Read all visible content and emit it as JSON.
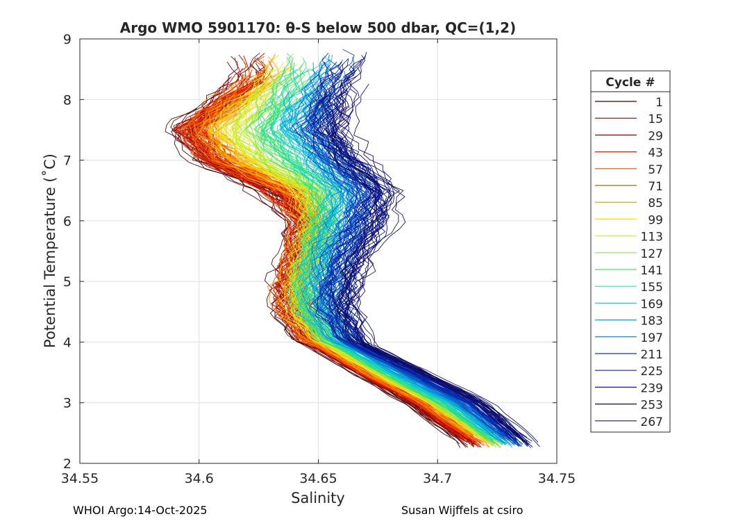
{
  "chart_data": {
    "type": "line",
    "title": "Argo WMO 5901170: θ-S below 500 dbar,  QC=(1,2)",
    "xlabel": "Salinity",
    "ylabel": "Potential Temperature (˚C)",
    "xlim": [
      34.55,
      34.75
    ],
    "ylim": [
      2,
      9
    ],
    "xticks": [
      "34.55",
      "34.6",
      "34.65",
      "34.7",
      "34.75"
    ],
    "yticks": [
      "2",
      "3",
      "4",
      "5",
      "6",
      "7",
      "8",
      "9"
    ],
    "grid": true,
    "legend": {
      "title": "Cycle #",
      "placement": "outside-right",
      "entries": [
        "1",
        "15",
        "29",
        "43",
        "57",
        "71",
        "85",
        "99",
        "113",
        "127",
        "141",
        "155",
        "169",
        "183",
        "197",
        "211",
        "225",
        "239",
        "253",
        "267"
      ],
      "colors": [
        "#3a0000",
        "#800000",
        "#a60000",
        "#cc1a00",
        "#e64d00",
        "#a86a00",
        "#c8a000",
        "#ffdd00",
        "#d4ef30",
        "#8ce34a",
        "#45e665",
        "#1ee6b0",
        "#12d2dc",
        "#0aa0dc",
        "#0a6ebe",
        "#0a3ca0",
        "#14288c",
        "#1414aa",
        "#0a0a46",
        "#191970"
      ]
    },
    "series_summary": "Theta-S profiles for cycles 1 to 267, one line per cycle, colored by cycle number",
    "mean_profile_by_cycle_group": [
      {
        "name": "cycles 1-43",
        "theta": [
          2.3,
          3.0,
          3.5,
          4.0,
          4.5,
          5.0,
          5.5,
          6.0,
          6.5,
          7.0,
          7.5,
          8.0,
          8.3
        ],
        "salinity": [
          34.712,
          34.688,
          34.666,
          34.645,
          34.637,
          34.637,
          34.64,
          34.642,
          34.628,
          34.602,
          34.592,
          34.608,
          34.618
        ]
      },
      {
        "name": "cycles 57-99",
        "theta": [
          2.3,
          3.0,
          3.5,
          4.0,
          4.5,
          5.0,
          5.5,
          6.0,
          6.5,
          7.0,
          7.5,
          8.0,
          8.5
        ],
        "salinity": [
          34.722,
          34.696,
          34.672,
          34.65,
          34.641,
          34.64,
          34.644,
          34.648,
          34.64,
          34.612,
          34.6,
          34.614,
          34.628
        ]
      },
      {
        "name": "cycles 113-169",
        "theta": [
          2.3,
          3.0,
          3.5,
          4.0,
          4.5,
          5.0,
          5.5,
          6.0,
          6.5,
          7.0,
          7.5,
          8.0,
          8.6
        ],
        "salinity": [
          34.73,
          34.706,
          34.682,
          34.66,
          34.65,
          34.65,
          34.652,
          34.656,
          34.66,
          34.65,
          34.64,
          34.645,
          34.65
        ]
      },
      {
        "name": "cycles 183-267",
        "theta": [
          2.3,
          3.0,
          3.5,
          4.0,
          4.5,
          5.0,
          5.5,
          6.0,
          6.5,
          7.0,
          7.5,
          8.0,
          8.7
        ],
        "salinity": [
          34.74,
          34.72,
          34.695,
          34.668,
          34.662,
          34.664,
          34.67,
          34.677,
          34.68,
          34.665,
          34.658,
          34.66,
          34.668
        ]
      }
    ]
  },
  "footer": {
    "left": "WHOI Argo:14-Oct-2025",
    "right": "Susan Wijffels at csiro"
  }
}
